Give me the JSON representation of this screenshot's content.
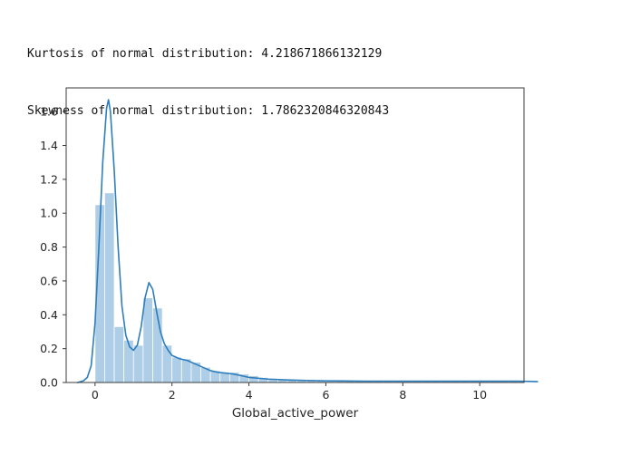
{
  "header": {
    "kurtosis_line": "Kurtosis of normal distribution: 4.218671866132129",
    "skewness_line": "Skewness of normal distribution: 1.7862320846320843"
  },
  "chart_data": {
    "type": "histogram+kde",
    "title": "",
    "xlabel": "Global_active_power",
    "ylabel": "",
    "xlim": [
      -0.75,
      11.15
    ],
    "ylim": [
      0,
      1.74
    ],
    "xticks": [
      0,
      2,
      4,
      6,
      8,
      10
    ],
    "yticks": [
      0.0,
      0.2,
      0.4,
      0.6,
      0.8,
      1.0,
      1.2,
      1.4,
      1.6
    ],
    "grid": false,
    "legend": "none",
    "bin_start": 0,
    "bin_width": 0.25,
    "bar_values": [
      1.05,
      1.12,
      0.33,
      0.25,
      0.22,
      0.5,
      0.44,
      0.22,
      0.15,
      0.14,
      0.12,
      0.09,
      0.07,
      0.06,
      0.06,
      0.05,
      0.04,
      0.03,
      0.02,
      0.02,
      0.015,
      0.012,
      0.01,
      0.01,
      0.009,
      0.009,
      0.008,
      0.008,
      0.008,
      0.008,
      0.008,
      0.008,
      0.008,
      0.008,
      0.008,
      0.008,
      0.008,
      0.008,
      0.008,
      0.008,
      0.008,
      0.008,
      0.008,
      0.008,
      0.008,
      0.012
    ],
    "kde": {
      "x": [
        -0.45,
        -0.3,
        -0.2,
        -0.1,
        0.0,
        0.1,
        0.2,
        0.3,
        0.35,
        0.4,
        0.5,
        0.6,
        0.7,
        0.8,
        0.9,
        1.0,
        1.1,
        1.2,
        1.3,
        1.4,
        1.5,
        1.6,
        1.7,
        1.8,
        1.9,
        2.0,
        2.2,
        2.4,
        2.6,
        2.8,
        3.0,
        3.2,
        3.4,
        3.6,
        3.8,
        4.0,
        4.5,
        5.0,
        5.5,
        6.0,
        7.0,
        8.0,
        9.0,
        10.0,
        11.0,
        11.5
      ],
      "y": [
        0.0,
        0.01,
        0.03,
        0.1,
        0.35,
        0.8,
        1.3,
        1.62,
        1.67,
        1.6,
        1.25,
        0.8,
        0.45,
        0.28,
        0.21,
        0.19,
        0.22,
        0.33,
        0.5,
        0.59,
        0.55,
        0.42,
        0.3,
        0.23,
        0.19,
        0.16,
        0.14,
        0.13,
        0.11,
        0.09,
        0.07,
        0.06,
        0.055,
        0.05,
        0.04,
        0.03,
        0.02,
        0.015,
        0.012,
        0.01,
        0.008,
        0.008,
        0.008,
        0.008,
        0.008,
        0.005
      ]
    },
    "colors": {
      "bar_fill": "#aecde6",
      "bar_edge": "#ffffff",
      "kde_line": "#2e7ebc",
      "axis": "#3b3b3b",
      "tick_text": "#262626"
    }
  }
}
